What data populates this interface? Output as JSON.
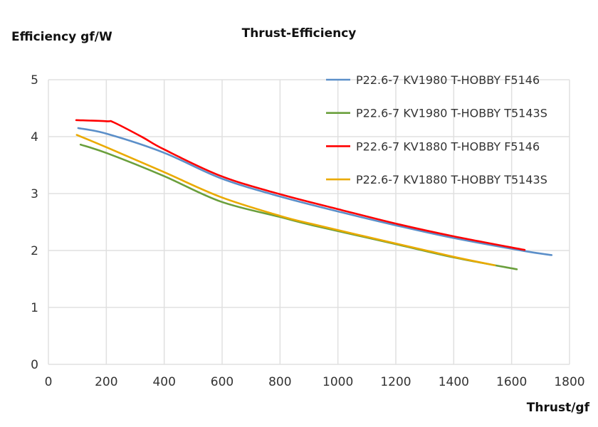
{
  "chart_data": {
    "type": "line",
    "title": "Thrust-Efficiency",
    "xlabel": "Thrust/gf",
    "ylabel": "Efficiency gf/W",
    "xlim": [
      0,
      1800
    ],
    "ylim": [
      0,
      5
    ],
    "xticks": [
      "0",
      "200",
      "400",
      "600",
      "800",
      "1000",
      "1200",
      "1400",
      "1600",
      "1800"
    ],
    "yticks": [
      "0",
      "1",
      "2",
      "3",
      "4",
      "5"
    ],
    "grid": true,
    "legend": "top-right",
    "series": [
      {
        "name": "P22.6-7 KV1980 T-HOBBY F5146",
        "color": "#5B8FC9",
        "x": [
          103,
          202,
          398,
          595,
          799,
          1013,
          1202,
          1399,
          1645,
          1738
        ],
        "y": [
          4.15,
          4.05,
          3.72,
          3.27,
          2.95,
          2.67,
          2.44,
          2.22,
          1.99,
          1.92
        ]
      },
      {
        "name": "P22.6-7 KV1980 T-HOBBY T5143S",
        "color": "#6A9F3C",
        "x": [
          111,
          202,
          398,
          595,
          799,
          915,
          1202,
          1399,
          1618
        ],
        "y": [
          3.86,
          3.71,
          3.31,
          2.86,
          2.59,
          2.44,
          2.11,
          1.88,
          1.67
        ]
      },
      {
        "name": "P22.6-7 KV1880 T-HOBBY F5146",
        "color": "#FF0000",
        "x": [
          96,
          202,
          226,
          325,
          398,
          595,
          799,
          1013,
          1210,
          1399,
          1645
        ],
        "y": [
          4.29,
          4.27,
          4.25,
          3.99,
          3.78,
          3.31,
          2.99,
          2.71,
          2.46,
          2.25,
          2.01
        ]
      },
      {
        "name": "P22.6-7 KV1880 T-HOBBY T5143S",
        "color": "#EAAA00",
        "x": [
          98,
          202,
          398,
          595,
          799,
          915,
          1202,
          1399,
          1542
        ],
        "y": [
          4.03,
          3.81,
          3.38,
          2.94,
          2.61,
          2.46,
          2.12,
          1.89,
          1.74
        ]
      }
    ]
  }
}
